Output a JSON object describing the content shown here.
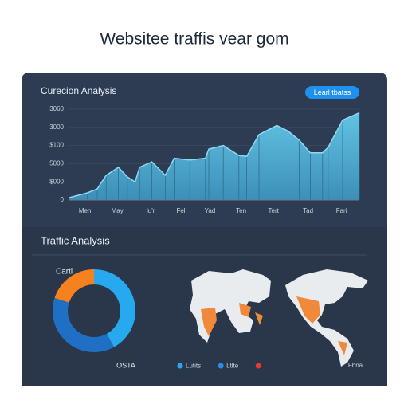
{
  "header": {
    "title": "Websitee traffis vear gom"
  },
  "panel": {
    "button": "Learl tbatss",
    "section_title": "Traffic Analysis"
  },
  "chart_data": [
    {
      "type": "area",
      "title": "Curecion Analysis",
      "color": "#5ab7d9",
      "x": [
        0,
        1.6,
        2.5,
        3.3,
        4.4,
        5.2,
        5.9,
        6.3,
        7.4,
        8.6,
        9.4,
        10.8,
        12.2,
        12.5,
        13.8,
        15.2,
        15.9,
        17,
        18.6,
        19.6,
        20.6,
        21.6,
        22.7,
        23.2,
        24.5,
        26
      ],
      "values": [
        0.13,
        0.39,
        0.61,
        1.36,
        1.8,
        1.27,
        1.0,
        1.8,
        2.1,
        1.36,
        2.3,
        2.2,
        2.3,
        2.8,
        3.0,
        2.45,
        2.4,
        3.6,
        4.1,
        3.8,
        3.3,
        2.6,
        2.6,
        2.9,
        4.4,
        4.8
      ],
      "xlim": [
        0,
        26
      ],
      "xticks": [
        {
          "value": 1.4,
          "label": "Men"
        },
        {
          "value": 4.3,
          "label": "May"
        },
        {
          "value": 7.3,
          "label": "lu'r"
        },
        {
          "value": 10,
          "label": "Fel"
        },
        {
          "value": 12.6,
          "label": "Yad"
        },
        {
          "value": 15.4,
          "label": "Ten"
        },
        {
          "value": 18.3,
          "label": "Tert"
        },
        {
          "value": 21.4,
          "label": "Tad"
        },
        {
          "value": 24.4,
          "label": "Fari"
        }
      ],
      "ylim": [
        0,
        5
      ],
      "yticks": [
        0,
        {
          "value": 1,
          "label": "$000"
        },
        {
          "value": 2,
          "label": "5000"
        },
        {
          "value": 3,
          "label": "$100"
        },
        {
          "value": 4,
          "label": "3000"
        },
        {
          "value": 5,
          "label": "3060"
        }
      ],
      "grid": true
    },
    {
      "type": "pie",
      "title": "Carti",
      "annotation": "OSTA",
      "donut": true,
      "values": [
        42,
        38,
        20
      ],
      "colors": [
        "#27a9f0",
        "#1f6fc4",
        "#f5821f"
      ]
    }
  ],
  "maps": {
    "legend": [
      {
        "label": "Lutits",
        "color": "#2aa7e8"
      },
      {
        "label": "Ltlte",
        "color": "#2a8fe0"
      },
      {
        "label": "",
        "color": "#e53935"
      }
    ],
    "caption": "Fbna"
  }
}
